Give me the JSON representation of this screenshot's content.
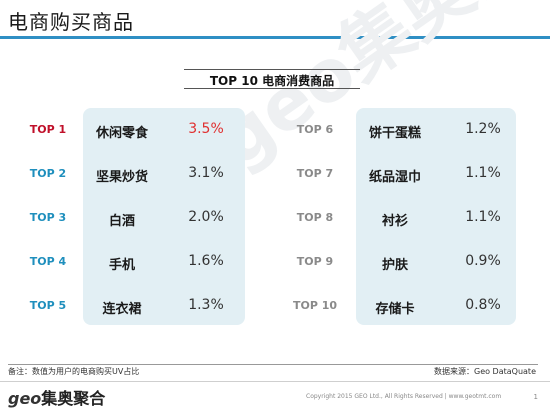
{
  "header": {
    "title": "电商购买商品",
    "subtitle": "TOP 10 电商消费商品"
  },
  "watermark": "geo集奥聚合",
  "rankings_left": [
    {
      "rank": "TOP 1",
      "item": "休闲零食",
      "share": "3.5%"
    },
    {
      "rank": "TOP 2",
      "item": "坚果炒货",
      "share": "3.1%"
    },
    {
      "rank": "TOP 3",
      "item": "白酒",
      "share": "2.0%"
    },
    {
      "rank": "TOP 4",
      "item": "手机",
      "share": "1.6%"
    },
    {
      "rank": "TOP 5",
      "item": "连衣裙",
      "share": "1.3%"
    }
  ],
  "rankings_right": [
    {
      "rank": "TOP 6",
      "item": "饼干蛋糕",
      "share": "1.2%"
    },
    {
      "rank": "TOP 7",
      "item": "纸品湿巾",
      "share": "1.1%"
    },
    {
      "rank": "TOP 8",
      "item": "衬衫",
      "share": "1.1%"
    },
    {
      "rank": "TOP 9",
      "item": "护肤",
      "share": "0.9%"
    },
    {
      "rank": "TOP 10",
      "item": "存储卡",
      "share": "0.8%"
    }
  ],
  "footer": {
    "note": "备注：数值为用户的电商购买UV占比",
    "source": "数据来源：Geo DataQuate",
    "logo_geo": "geo",
    "logo_name": "集奥聚合",
    "copyright": "Copyright 2015 GEO Ltd., All Rights Reserved   |   www.geotmt.com",
    "page": "1"
  },
  "colors": {
    "accent": "#2f8fc4",
    "top1": "#c0102a",
    "hot_value": "#e03030",
    "panel": "#e2eff4"
  }
}
